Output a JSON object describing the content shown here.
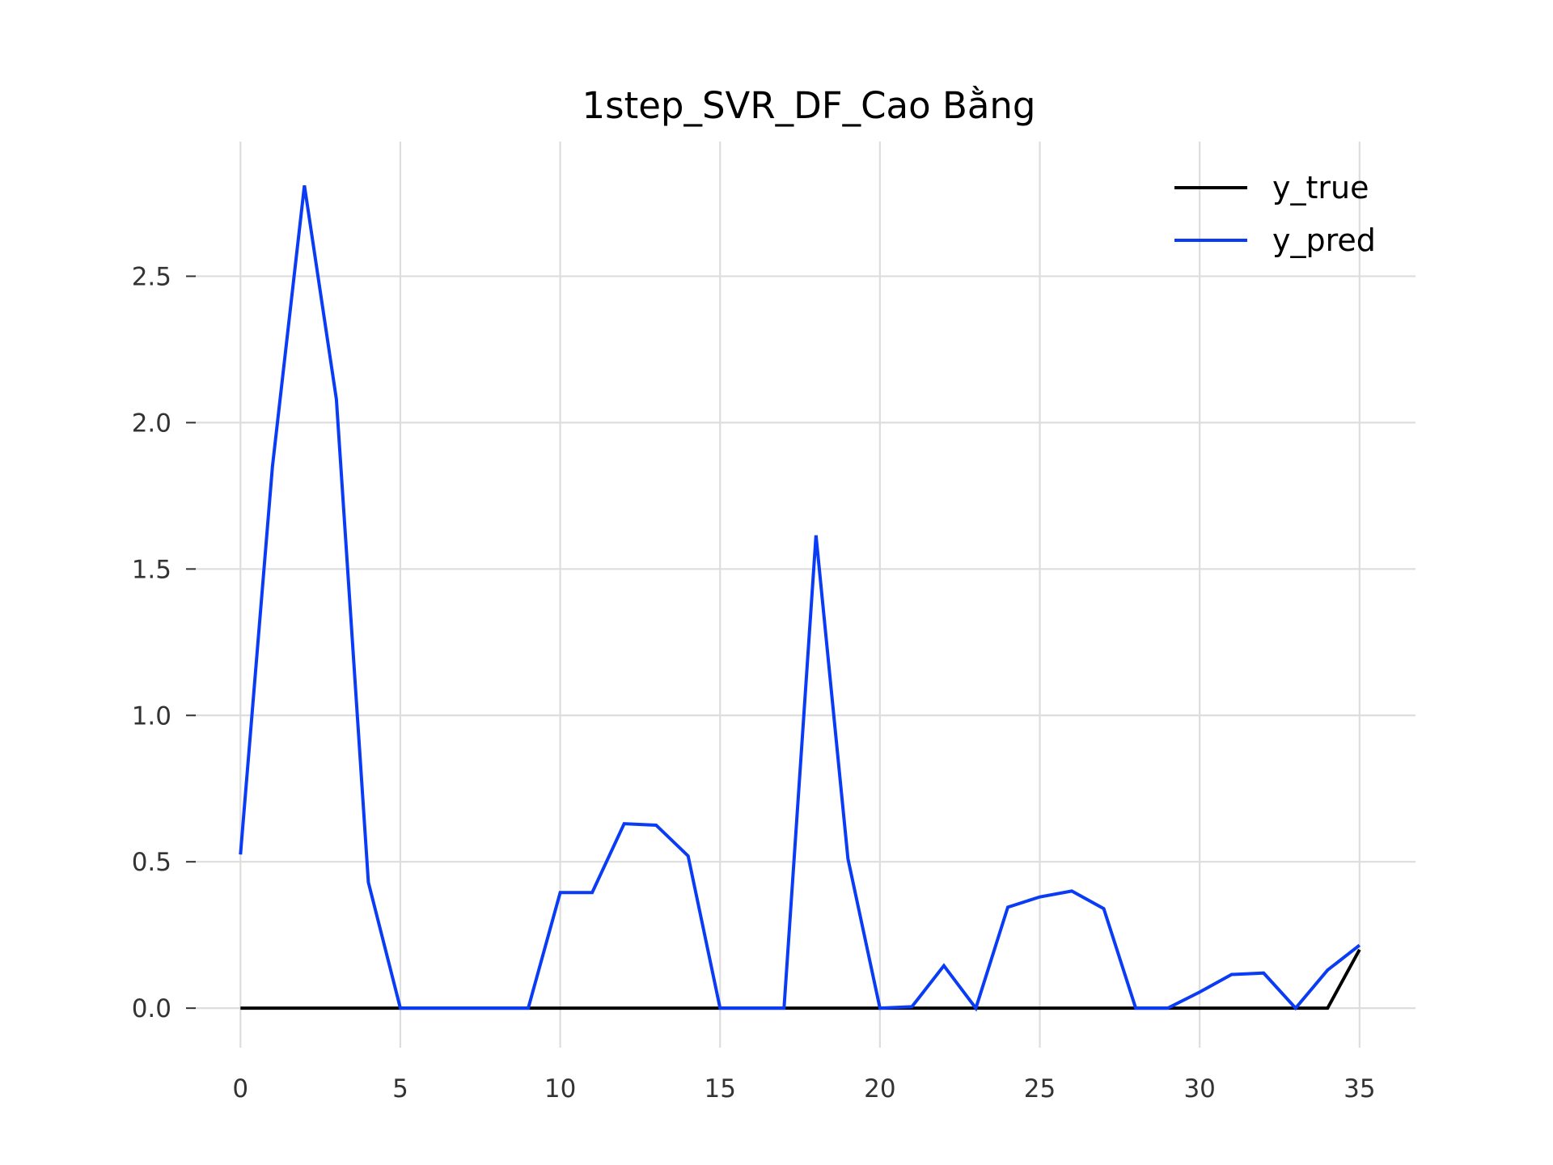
{
  "chart_data": {
    "type": "line",
    "title": "1step_SVR_DF_Cao Bằng",
    "xlabel": "",
    "ylabel": "",
    "xlim": [
      -1.5,
      36.75
    ],
    "ylim": [
      -0.135,
      2.96
    ],
    "x_ticks": [
      0,
      5,
      10,
      15,
      20,
      25,
      30,
      35
    ],
    "y_ticks": [
      0.0,
      0.5,
      1.0,
      1.5,
      2.0,
      2.5
    ],
    "x_tick_labels": [
      "0",
      "5",
      "10",
      "15",
      "20",
      "25",
      "30",
      "35"
    ],
    "y_tick_labels": [
      "0.0",
      "0.5",
      "1.0",
      "1.5",
      "2.0",
      "2.5"
    ],
    "grid": true,
    "legend_position": "top-right",
    "x": [
      0,
      1,
      2,
      3,
      4,
      5,
      6,
      7,
      8,
      9,
      10,
      11,
      12,
      13,
      14,
      15,
      16,
      17,
      18,
      19,
      20,
      21,
      22,
      23,
      24,
      25,
      26,
      27,
      28,
      29,
      30,
      31,
      32,
      33,
      34,
      35
    ],
    "series": [
      {
        "name": "y_true",
        "color": "#000000",
        "values": [
          0,
          0,
          0,
          0,
          0,
          0,
          0,
          0,
          0,
          0,
          0,
          0,
          0,
          0,
          0,
          0,
          0,
          0,
          0,
          0,
          0,
          0,
          0,
          0,
          0,
          0,
          0,
          0,
          0,
          0,
          0,
          0,
          0,
          0,
          0,
          0.2
        ]
      },
      {
        "name": "y_pred",
        "color": "#0a3cf5",
        "values": [
          0.525,
          1.85,
          2.81,
          2.08,
          0.43,
          0,
          0,
          0,
          0,
          0,
          0.395,
          0.395,
          0.63,
          0.625,
          0.52,
          0,
          0,
          0,
          1.615,
          0.51,
          0,
          0.005,
          0.145,
          0,
          0.345,
          0.38,
          0.4,
          0.34,
          0,
          0,
          0.055,
          0.115,
          0.12,
          0,
          0.13,
          0.215
        ]
      }
    ]
  }
}
